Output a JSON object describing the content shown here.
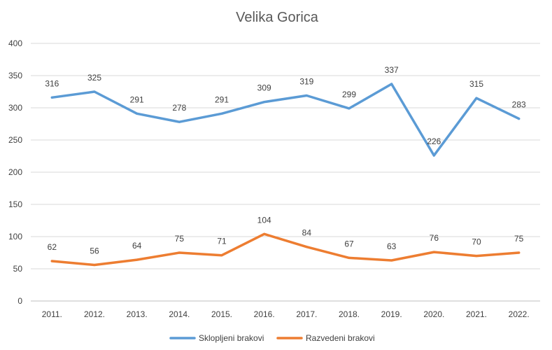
{
  "chart_data": {
    "type": "line",
    "title": "Velika Gorica",
    "categories": [
      "2011.",
      "2012.",
      "2013.",
      "2014.",
      "2015.",
      "2016.",
      "2017.",
      "2018.",
      "2019.",
      "2020.",
      "2021.",
      "2022."
    ],
    "series": [
      {
        "name": "Sklopljeni brakovi",
        "color": "#5b9bd5",
        "values": [
          316,
          325,
          291,
          278,
          291,
          309,
          319,
          299,
          337,
          226,
          315,
          283
        ]
      },
      {
        "name": "Razvedeni brakovi",
        "color": "#ed7d31",
        "values": [
          62,
          56,
          64,
          75,
          71,
          104,
          84,
          67,
          63,
          76,
          70,
          75
        ]
      }
    ],
    "ylim": [
      0,
      400
    ],
    "yticks": [
      0,
      50,
      100,
      150,
      200,
      250,
      300,
      350,
      400
    ],
    "grid": true,
    "legend_position": "bottom",
    "data_labels": true
  }
}
